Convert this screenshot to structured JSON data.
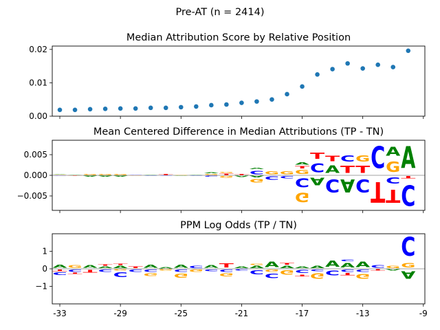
{
  "figure": {
    "suptitle": "Pre-AT (n = 2414)"
  },
  "colors": {
    "A": "#008000",
    "C": "#0000ff",
    "G": "#ffa500",
    "T": "#ff0000",
    "scatter": "#1f77b4",
    "axis": "#000000",
    "zero_line": "#808080"
  },
  "chart_data": [
    {
      "type": "scatter",
      "title": "Median Attribution Score by Relative Position",
      "xlabel": "",
      "ylabel": "",
      "xlim": [
        -33.5,
        -8.9
      ],
      "ylim": [
        0,
        0.021
      ],
      "yticks": [
        0.0,
        0.01,
        0.02
      ],
      "ytick_labels": [
        "0.00",
        "0.01",
        "0.02"
      ],
      "x": [
        -33,
        -32,
        -31,
        -30,
        -29,
        -28,
        -27,
        -26,
        -25,
        -24,
        -23,
        -22,
        -21,
        -20,
        -19,
        -18,
        -17,
        -16,
        -15,
        -14,
        -13,
        -12,
        -11,
        -10
      ],
      "values": [
        0.0019,
        0.0019,
        0.0021,
        0.0022,
        0.0023,
        0.0023,
        0.0025,
        0.0025,
        0.0027,
        0.0029,
        0.0033,
        0.0035,
        0.004,
        0.0044,
        0.005,
        0.0066,
        0.0089,
        0.0125,
        0.0141,
        0.0158,
        0.0143,
        0.0154,
        0.0147,
        0.0196
      ]
    },
    {
      "type": "sequence_logo",
      "title": "Mean Centered Difference in Median Attributions (TP - TN)",
      "xlim": [
        -33.5,
        -8.9
      ],
      "ylim": [
        -0.0085,
        0.0085
      ],
      "yticks": [
        -0.005,
        0.0,
        0.005
      ],
      "ytick_labels": [
        "−0.005",
        "0.000",
        "0.005"
      ],
      "positions": [
        {
          "x": -33,
          "pos": [
            [
              "G",
              0.0002
            ],
            [
              "A",
              0.0001
            ]
          ],
          "neg": [
            [
              "C",
              0.0001
            ]
          ]
        },
        {
          "x": -32,
          "pos": [
            [
              "A",
              0.0002
            ]
          ],
          "neg": [
            [
              "T",
              0.0001
            ]
          ]
        },
        {
          "x": -31,
          "pos": [
            [
              "G",
              0.0003
            ]
          ],
          "neg": [
            [
              "A",
              0.0003
            ]
          ]
        },
        {
          "x": -30,
          "pos": [
            [
              "G",
              0.0003
            ]
          ],
          "neg": [
            [
              "A",
              0.0003
            ]
          ]
        },
        {
          "x": -29,
          "pos": [
            [
              "G",
              0.0004
            ]
          ],
          "neg": [
            [
              "A",
              0.0003
            ]
          ]
        },
        {
          "x": -28,
          "pos": [
            [
              "C",
              0.0002
            ]
          ],
          "neg": [
            [
              "G",
              0.0001
            ]
          ]
        },
        {
          "x": -27,
          "pos": [
            [
              "A",
              0.0001
            ]
          ],
          "neg": [
            [
              "C",
              0.0002
            ]
          ]
        },
        {
          "x": -26,
          "pos": [
            [
              "T",
              0.0003
            ]
          ],
          "neg": [
            [
              "C",
              0.0002
            ]
          ]
        },
        {
          "x": -25,
          "pos": [
            [
              "G",
              0.0002
            ]
          ],
          "neg": [
            [
              "A",
              0.0001
            ]
          ]
        },
        {
          "x": -24,
          "pos": [
            [
              "A",
              0.0001
            ]
          ],
          "neg": [
            [
              "C",
              0.0001
            ]
          ]
        },
        {
          "x": -23,
          "pos": [
            [
              "G",
              0.0004
            ],
            [
              "A",
              0.0003
            ]
          ],
          "neg": [
            [
              "C",
              0.0004
            ]
          ]
        },
        {
          "x": -22,
          "pos": [
            [
              "T",
              0.0005
            ],
            [
              "G",
              0.0003
            ]
          ],
          "neg": [
            [
              "G",
              0.0007
            ]
          ]
        },
        {
          "x": -21,
          "pos": [
            [
              "T",
              0.0004
            ]
          ],
          "neg": [
            [
              "A",
              0.0005
            ]
          ]
        },
        {
          "x": -20,
          "pos": [
            [
              "C",
              0.0014
            ],
            [
              "A",
              0.0005
            ]
          ],
          "neg": [
            [
              "A",
              0.0006
            ],
            [
              "G",
              0.0014
            ]
          ]
        },
        {
          "x": -19,
          "pos": [
            [
              "G",
              0.0012
            ]
          ],
          "neg": [
            [
              "C",
              0.0013
            ]
          ]
        },
        {
          "x": -18,
          "pos": [
            [
              "G",
              0.0012
            ]
          ],
          "neg": [
            [
              "C",
              0.0009
            ]
          ]
        },
        {
          "x": -17,
          "pos": [
            [
              "G",
              0.0015
            ],
            [
              "T",
              0.0009
            ],
            [
              "A",
              0.0008
            ]
          ],
          "neg": [
            [
              "C",
              0.0035
            ],
            [
              "G",
              0.0037
            ]
          ]
        },
        {
          "x": -16,
          "pos": [
            [
              "C",
              0.0035
            ],
            [
              "T",
              0.0025
            ]
          ],
          "neg": [
            [
              "A",
              0.003
            ]
          ]
        },
        {
          "x": -15,
          "pos": [
            [
              "A",
              0.003
            ],
            [
              "T",
              0.002
            ]
          ],
          "neg": [
            [
              "C",
              0.005
            ]
          ]
        },
        {
          "x": -14,
          "pos": [
            [
              "T",
              0.0028
            ],
            [
              "C",
              0.0025
            ]
          ],
          "neg": [
            [
              "A",
              0.005
            ]
          ]
        },
        {
          "x": -13,
          "pos": [
            [
              "T",
              0.0028
            ],
            [
              "G",
              0.0025
            ]
          ],
          "neg": [
            [
              "C",
              0.005
            ]
          ]
        },
        {
          "x": -12,
          "pos": [
            [
              "C",
              0.0085
            ]
          ],
          "neg": [
            [
              "T",
              0.008
            ]
          ]
        },
        {
          "x": -11,
          "pos": [
            [
              "G",
              0.004
            ],
            [
              "A",
              0.0035
            ]
          ],
          "neg": [
            [
              "C",
              0.0025
            ],
            [
              "T",
              0.005
            ]
          ]
        },
        {
          "x": -10,
          "pos": [
            [
              "A",
              0.0085
            ]
          ],
          "neg": [
            [
              "T",
              0.0008
            ],
            [
              "C",
              0.008
            ]
          ]
        }
      ]
    },
    {
      "type": "sequence_logo",
      "title": "PPM Log Odds (TP / TN)",
      "xlim": [
        -33.5,
        -8.9
      ],
      "ylim": [
        -2.0,
        2.0
      ],
      "yticks": [
        -1,
        0,
        1
      ],
      "ytick_labels": [
        "−1",
        "0",
        "1"
      ],
      "xticks": [
        -33,
        -29,
        -25,
        -21,
        -17,
        -13,
        -9
      ],
      "xtick_labels": [
        "-33",
        "-29",
        "-25",
        "-21",
        "-17",
        "-13",
        "-9"
      ],
      "positions": [
        {
          "x": -33,
          "pos": [
            [
              "A",
              0.3
            ]
          ],
          "neg": [
            [
              "T",
              0.15
            ],
            [
              "C",
              0.25
            ]
          ]
        },
        {
          "x": -32,
          "pos": [
            [
              "G",
              0.25
            ]
          ],
          "neg": [
            [
              "C",
              0.2
            ],
            [
              "T",
              0.1
            ]
          ]
        },
        {
          "x": -31,
          "pos": [
            [
              "A",
              0.25
            ]
          ],
          "neg": [
            [
              "T",
              0.25
            ]
          ]
        },
        {
          "x": -30,
          "pos": [
            [
              "A",
              0.15
            ],
            [
              "T",
              0.1
            ]
          ],
          "neg": [
            [
              "C",
              0.2
            ]
          ]
        },
        {
          "x": -29,
          "pos": [
            [
              "A",
              0.2
            ],
            [
              "T",
              0.1
            ]
          ],
          "neg": [
            [
              "G",
              0.1
            ],
            [
              "C",
              0.45
            ]
          ]
        },
        {
          "x": -28,
          "pos": [
            [
              "T",
              0.15
            ]
          ],
          "neg": [
            [
              "C",
              0.2
            ]
          ]
        },
        {
          "x": -27,
          "pos": [
            [
              "A",
              0.3
            ]
          ],
          "neg": [
            [
              "C",
              0.2
            ],
            [
              "G",
              0.25
            ]
          ]
        },
        {
          "x": -26,
          "pos": [
            [
              "A",
              0.1
            ]
          ],
          "neg": [
            [
              "G",
              0.1
            ]
          ]
        },
        {
          "x": -25,
          "pos": [
            [
              "A",
              0.3
            ]
          ],
          "neg": [
            [
              "C",
              0.2
            ],
            [
              "G",
              0.35
            ]
          ]
        },
        {
          "x": -24,
          "pos": [
            [
              "C",
              0.2
            ]
          ],
          "neg": [
            [
              "G",
              0.2
            ]
          ]
        },
        {
          "x": -23,
          "pos": [
            [
              "A",
              0.25
            ]
          ],
          "neg": [
            [
              "C",
              0.15
            ]
          ]
        },
        {
          "x": -22,
          "pos": [
            [
              "T",
              0.35
            ]
          ],
          "neg": [
            [
              "C",
              0.2
            ],
            [
              "G",
              0.3
            ]
          ]
        },
        {
          "x": -21,
          "pos": [
            [
              "A",
              0.15
            ]
          ],
          "neg": [
            [
              "C",
              0.1
            ]
          ]
        },
        {
          "x": -20,
          "pos": [
            [
              "A",
              0.2
            ],
            [
              "G",
              0.1
            ]
          ],
          "neg": [
            [
              "C",
              0.35
            ]
          ]
        },
        {
          "x": -19,
          "pos": [
            [
              "A",
              0.5
            ]
          ],
          "neg": [
            [
              "G",
              0.2
            ],
            [
              "C",
              0.4
            ]
          ]
        },
        {
          "x": -18,
          "pos": [
            [
              "A",
              0.2
            ],
            [
              "T",
              0.15
            ]
          ],
          "neg": [
            [
              "G",
              0.4
            ]
          ]
        },
        {
          "x": -17,
          "pos": [
            [
              "A",
              0.15
            ]
          ],
          "neg": [
            [
              "C",
              0.3
            ],
            [
              "T",
              0.15
            ]
          ]
        },
        {
          "x": -16,
          "pos": [
            [
              "A",
              0.2
            ]
          ],
          "neg": [
            [
              "C",
              0.15
            ],
            [
              "G",
              0.5
            ]
          ]
        },
        {
          "x": -15,
          "pos": [
            [
              "A",
              0.55
            ]
          ],
          "neg": [
            [
              "C",
              0.45
            ]
          ]
        },
        {
          "x": -14,
          "pos": [
            [
              "A",
              0.4
            ],
            [
              "C",
              0.15
            ]
          ],
          "neg": [
            [
              "C",
              0.2
            ],
            [
              "T",
              0.2
            ]
          ]
        },
        {
          "x": -13,
          "pos": [
            [
              "A",
              0.5
            ]
          ],
          "neg": [
            [
              "C",
              0.2
            ],
            [
              "G",
              0.45
            ]
          ]
        },
        {
          "x": -12,
          "pos": [
            [
              "C",
              0.25
            ]
          ],
          "neg": [
            [
              "T",
              0.1
            ]
          ]
        },
        {
          "x": -11,
          "pos": [
            [
              "G",
              0.2
            ]
          ],
          "neg": [
            [
              "A",
              0.1
            ]
          ]
        },
        {
          "x": -10,
          "pos": [
            [
              "G",
              0.4
            ],
            [
              "C",
              1.7
            ]
          ],
          "neg": [
            [
              "A",
              0.7
            ]
          ]
        }
      ]
    }
  ]
}
